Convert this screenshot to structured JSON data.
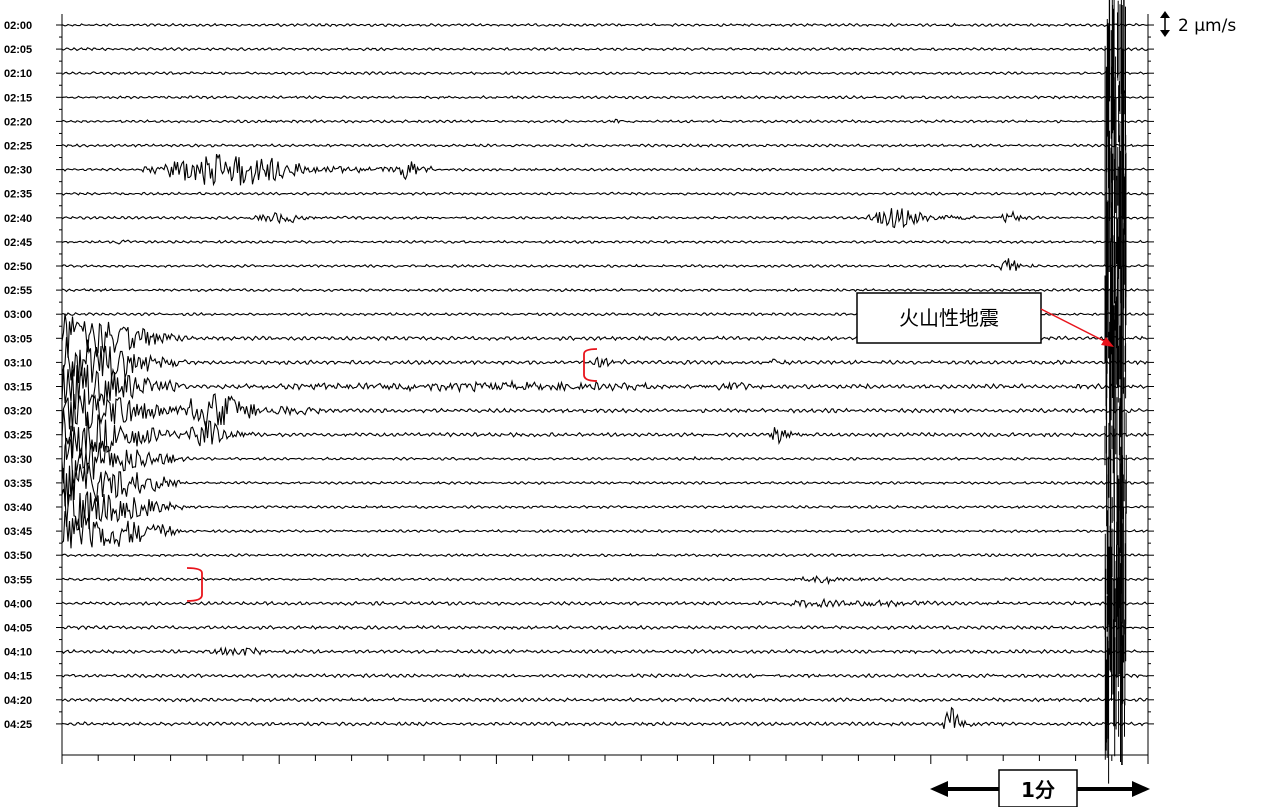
{
  "chart_data": {
    "type": "line",
    "title": "",
    "xlabel": "",
    "ylabel": "",
    "row_labels": [
      "02:00",
      "02:05",
      "02:10",
      "02:15",
      "02:20",
      "02:25",
      "02:30",
      "02:35",
      "02:40",
      "02:45",
      "02:50",
      "02:55",
      "03:00",
      "03:05",
      "03:10",
      "03:15",
      "03:20",
      "03:25",
      "03:30",
      "03:35",
      "03:40",
      "03:45",
      "03:50",
      "03:55",
      "04:00",
      "04:05",
      "04:10",
      "04:15",
      "04:20",
      "04:25"
    ],
    "x_range_minutes": [
      0,
      5
    ],
    "amplitude_scale": "2 μm/s",
    "duration_marker": "1分",
    "callout": "火山性地震",
    "grid": false,
    "events": [
      {
        "row": 4,
        "start": 2.52,
        "end": 2.62,
        "amp": 0.3
      },
      {
        "row": 6,
        "start": 0.37,
        "end": 1.7,
        "amp": 1.4
      },
      {
        "row": 6,
        "start": 1.55,
        "end": 1.7,
        "amp": 0.8
      },
      {
        "row": 8,
        "start": 0.85,
        "end": 1.4,
        "amp": 0.4
      },
      {
        "row": 8,
        "start": 3.7,
        "end": 4.2,
        "amp": 0.9
      },
      {
        "row": 8,
        "start": 4.3,
        "end": 4.5,
        "amp": 0.6
      },
      {
        "row": 9,
        "start": 0.25,
        "end": 0.35,
        "amp": 0.4
      },
      {
        "row": 10,
        "start": 4.3,
        "end": 4.5,
        "amp": 0.7
      },
      {
        "row": 14,
        "start": 2.45,
        "end": 2.6,
        "amp": 0.7
      },
      {
        "row": 14,
        "start": 3.25,
        "end": 3.35,
        "amp": 0.3
      },
      {
        "row": 15,
        "start": 0.6,
        "end": 4.85,
        "amp": 0.3
      },
      {
        "row": 15,
        "start": 3.0,
        "end": 3.3,
        "amp": 0.4
      },
      {
        "row": 16,
        "start": 0.5,
        "end": 1.2,
        "amp": 1.6
      },
      {
        "row": 17,
        "start": 0.55,
        "end": 0.9,
        "amp": 1.3
      },
      {
        "row": 17,
        "start": 3.25,
        "end": 3.45,
        "amp": 0.8
      },
      {
        "row": 18,
        "start": 2.9,
        "end": 3.0,
        "amp": 0.3
      },
      {
        "row": 20,
        "start": 0.0,
        "end": 0.45,
        "amp": 0.4
      },
      {
        "row": 23,
        "start": 3.35,
        "end": 3.8,
        "amp": 0.3
      },
      {
        "row": 24,
        "start": 3.1,
        "end": 4.8,
        "amp": 0.25
      },
      {
        "row": 26,
        "start": 0.65,
        "end": 1.2,
        "amp": 0.35
      },
      {
        "row": 29,
        "start": 4.05,
        "end": 4.2,
        "amp": 1.5
      }
    ],
    "large_event": {
      "row_start": 13,
      "row_end": 21,
      "start": 0.0,
      "end": 0.6
    },
    "volcanic_event": {
      "row_start": 0,
      "row_end": 29,
      "start": 4.8,
      "end": 4.9
    }
  },
  "colors": {
    "trace": "#000000",
    "annotation": "#e8141c"
  },
  "icons": {
    "scale_bar": "double-headed-vertical-arrow",
    "duration": "double-headed-horizontal-arrow"
  }
}
